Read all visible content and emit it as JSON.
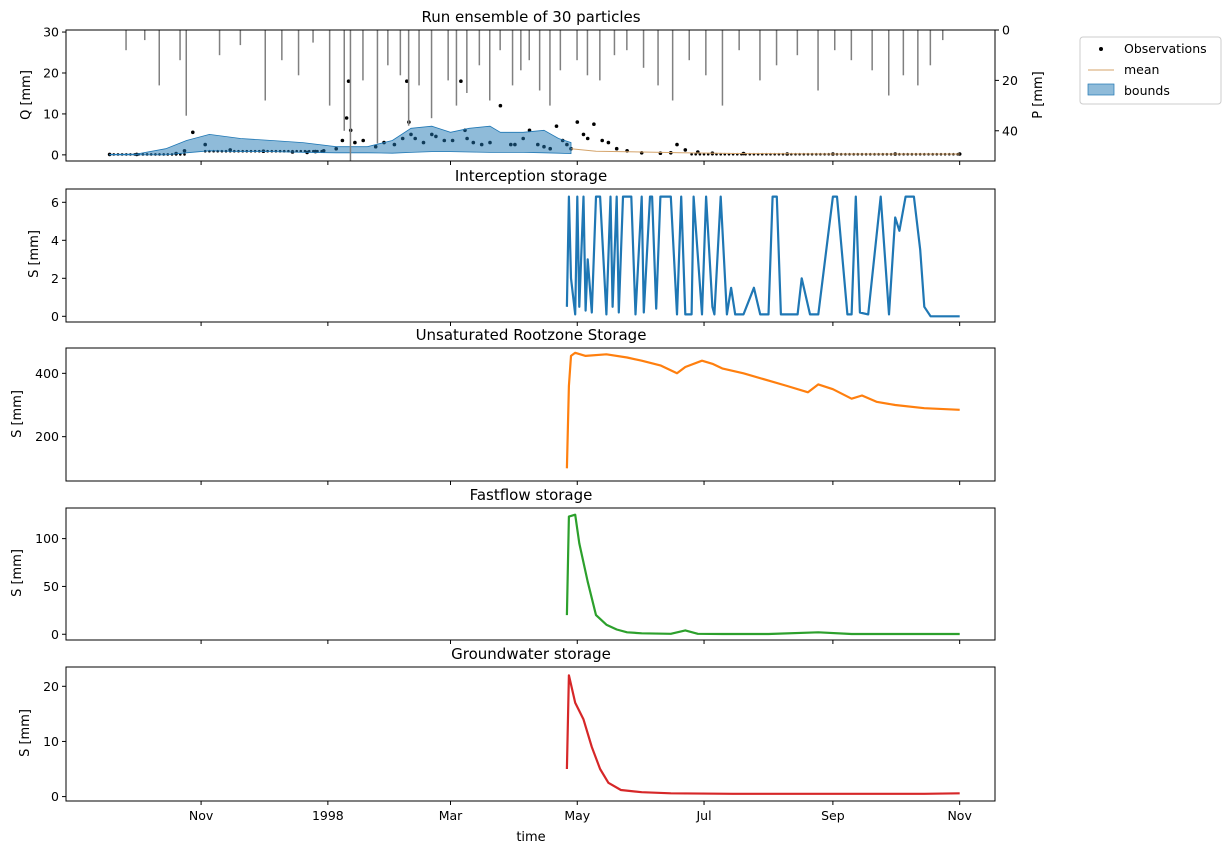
{
  "chart_data": [
    {
      "type": "line",
      "title": "Run ensemble of 30 particles",
      "xlabel": "",
      "ylabel": "Q [mm]",
      "ylabel_right": "P [mm]",
      "ylim": [
        -1.5,
        30.5
      ],
      "yticks": [
        "0",
        "10",
        "20",
        "30"
      ],
      "ylim_right_inverted": [
        52,
        0
      ],
      "yticks_right": [
        "0",
        "20",
        "40"
      ],
      "legend": {
        "placement": "outside-top-right",
        "entries": [
          "Observations",
          "mean",
          "bounds"
        ]
      },
      "series": [
        {
          "name": "Observations",
          "style": "points",
          "color": "#000000",
          "x": [
            "1997-09-18",
            "1997-10-01",
            "1997-10-20",
            "1997-10-24",
            "1997-10-28",
            "1997-11-03",
            "1997-11-15",
            "1997-12-01",
            "1997-12-15",
            "1997-12-22",
            "1997-12-26",
            "1997-12-30",
            "1998-01-05",
            "1998-01-08",
            "1998-01-10",
            "1998-01-11",
            "1998-01-12",
            "1998-01-14",
            "1998-01-18",
            "1998-01-24",
            "1998-01-28",
            "1998-02-02",
            "1998-02-06",
            "1998-02-08",
            "1998-02-09",
            "1998-02-10",
            "1998-02-12",
            "1998-02-16",
            "1998-02-20",
            "1998-02-22",
            "1998-02-26",
            "1998-03-02",
            "1998-03-06",
            "1998-03-08",
            "1998-03-09",
            "1998-03-12",
            "1998-03-16",
            "1998-03-20",
            "1998-03-25",
            "1998-03-30",
            "1998-04-01",
            "1998-04-05",
            "1998-04-08",
            "1998-04-12",
            "1998-04-15",
            "1998-04-18",
            "1998-04-21",
            "1998-04-24",
            "1998-04-26",
            "1998-04-28",
            "1998-05-01",
            "1998-05-04",
            "1998-05-06",
            "1998-05-09",
            "1998-05-13",
            "1998-05-16",
            "1998-05-20",
            "1998-05-25",
            "1998-06-01",
            "1998-06-10",
            "1998-06-15",
            "1998-06-18",
            "1998-06-22",
            "1998-06-28",
            "1998-07-05",
            "1998-07-20",
            "1998-08-10",
            "1998-09-01",
            "1998-10-01",
            "1998-11-01"
          ],
          "values": [
            0.1,
            0.1,
            0.3,
            1.0,
            5.5,
            2.5,
            1.2,
            0.9,
            0.7,
            0.6,
            0.8,
            1.0,
            1.5,
            3.5,
            9.0,
            18.0,
            6.0,
            3.0,
            3.5,
            2.0,
            3.0,
            2.5,
            4.0,
            18.0,
            8.0,
            5.0,
            4.0,
            3.0,
            5.0,
            4.5,
            3.5,
            3.5,
            18.0,
            6.0,
            4.0,
            3.0,
            2.5,
            3.0,
            12.0,
            2.5,
            2.5,
            4.0,
            6.0,
            2.5,
            2.0,
            1.5,
            7.0,
            3.5,
            2.5,
            1.5,
            8.0,
            5.0,
            4.0,
            7.5,
            3.5,
            3.0,
            1.5,
            1.0,
            0.5,
            0.4,
            0.5,
            2.5,
            1.2,
            0.7,
            0.4,
            0.3,
            0.2,
            0.2,
            0.2,
            0.2
          ]
        },
        {
          "name": "mean",
          "style": "line",
          "color": "#d4a36a",
          "x": [
            "1998-04-28",
            "1998-05-10",
            "1998-06-01",
            "1998-06-20",
            "1998-07-20",
            "1998-09-01",
            "1998-11-01"
          ],
          "values": [
            1.5,
            0.9,
            0.7,
            0.5,
            0.3,
            0.2,
            0.2
          ]
        },
        {
          "name": "bounds",
          "style": "band",
          "color": "#1f77b4",
          "x": [
            "1997-09-18",
            "1997-10-01",
            "1997-10-15",
            "1997-10-25",
            "1997-11-05",
            "1997-11-20",
            "1997-12-05",
            "1997-12-20",
            "1998-01-05",
            "1998-01-20",
            "1998-02-01",
            "1998-02-10",
            "1998-02-20",
            "1998-03-01",
            "1998-03-10",
            "1998-03-20",
            "1998-03-25",
            "1998-04-05",
            "1998-04-15",
            "1998-04-22",
            "1998-04-28"
          ],
          "upper": [
            0.1,
            0.2,
            1.5,
            3.5,
            5.0,
            4.0,
            3.5,
            3.0,
            2.0,
            2.0,
            3.5,
            6.5,
            7.0,
            5.5,
            6.5,
            7.0,
            5.5,
            5.5,
            6.0,
            4.0,
            3.0
          ],
          "lower": [
            0.0,
            0.0,
            0.0,
            0.5,
            1.0,
            0.8,
            0.8,
            0.6,
            0.5,
            0.5,
            0.4,
            0.6,
            0.8,
            0.8,
            0.7,
            0.6,
            0.6,
            0.6,
            0.5,
            0.4,
            0.3
          ]
        },
        {
          "name": "",
          "style": "bars-from-top",
          "color": "#808080",
          "axis": "right",
          "x": [
            "1997-09-26",
            "1997-10-05",
            "1997-10-12",
            "1997-10-22",
            "1997-10-25",
            "1997-11-10",
            "1997-11-20",
            "1997-12-02",
            "1997-12-10",
            "1997-12-18",
            "1997-12-25",
            "1998-01-02",
            "1998-01-09",
            "1998-01-12",
            "1998-01-18",
            "1998-01-25",
            "1998-01-30",
            "1998-02-05",
            "1998-02-09",
            "1998-02-14",
            "1998-02-20",
            "1998-02-28",
            "1998-03-04",
            "1998-03-09",
            "1998-03-15",
            "1998-03-20",
            "1998-03-25",
            "1998-03-31",
            "1998-04-04",
            "1998-04-08",
            "1998-04-13",
            "1998-04-18",
            "1998-04-23",
            "1998-05-01",
            "1998-05-06",
            "1998-05-12",
            "1998-05-19",
            "1998-05-25",
            "1998-06-02",
            "1998-06-09",
            "1998-06-16",
            "1998-06-24",
            "1998-07-02",
            "1998-07-10",
            "1998-07-18",
            "1998-07-28",
            "1998-08-05",
            "1998-08-15",
            "1998-08-25",
            "1998-09-02",
            "1998-09-10",
            "1998-09-20",
            "1998-09-28",
            "1998-10-05",
            "1998-10-12",
            "1998-10-18",
            "1998-10-24"
          ],
          "values": [
            8,
            4,
            22,
            12,
            34,
            10,
            6,
            28,
            12,
            18,
            5,
            30,
            40,
            52,
            20,
            45,
            14,
            18,
            38,
            22,
            35,
            20,
            30,
            25,
            14,
            28,
            8,
            22,
            16,
            12,
            24,
            30,
            16,
            12,
            18,
            20,
            10,
            8,
            15,
            22,
            28,
            12,
            18,
            30,
            8,
            20,
            14,
            10,
            24,
            8,
            12,
            16,
            26,
            18,
            22,
            14,
            4
          ]
        }
      ]
    },
    {
      "type": "line",
      "title": "Interception storage",
      "xlabel": "",
      "ylabel": "S [mm]",
      "ylim": [
        -0.3,
        6.7
      ],
      "yticks": [
        "0",
        "2",
        "4",
        "6"
      ],
      "series": [
        {
          "color": "#1f77b4",
          "x": [
            "1998-04-26",
            "1998-04-27",
            "1998-04-28",
            "1998-04-30",
            "1998-05-01",
            "1998-05-02",
            "1998-05-04",
            "1998-05-05",
            "1998-05-06",
            "1998-05-08",
            "1998-05-10",
            "1998-05-12",
            "1998-05-15",
            "1998-05-17",
            "1998-05-18",
            "1998-05-20",
            "1998-05-21",
            "1998-05-23",
            "1998-05-27",
            "1998-05-29",
            "1998-06-01",
            "1998-06-02",
            "1998-06-05",
            "1998-06-06",
            "1998-06-08",
            "1998-06-10",
            "1998-06-11",
            "1998-06-15",
            "1998-06-18",
            "1998-06-20",
            "1998-06-22",
            "1998-06-25",
            "1998-06-26",
            "1998-06-30",
            "1998-07-02",
            "1998-07-05",
            "1998-07-06",
            "1998-07-09",
            "1998-07-12",
            "1998-07-14",
            "1998-07-16",
            "1998-07-20",
            "1998-07-25",
            "1998-07-28",
            "1998-08-01",
            "1998-08-03",
            "1998-08-05",
            "1998-08-07",
            "1998-08-15",
            "1998-08-17",
            "1998-08-21",
            "1998-08-25",
            "1998-09-01",
            "1998-09-03",
            "1998-09-08",
            "1998-09-10",
            "1998-09-12",
            "1998-09-14",
            "1998-09-18",
            "1998-09-24",
            "1998-09-28",
            "1998-10-01",
            "1998-10-03",
            "1998-10-06",
            "1998-10-10",
            "1998-10-13",
            "1998-10-15",
            "1998-10-18",
            "1998-11-01"
          ],
          "values": [
            0.5,
            6.3,
            2.0,
            0.1,
            6.3,
            0.5,
            6.3,
            0.3,
            3.0,
            0.2,
            6.3,
            6.3,
            0.1,
            6.3,
            0.5,
            6.3,
            0.2,
            6.3,
            6.3,
            0.1,
            6.3,
            0.2,
            6.3,
            6.3,
            0.4,
            6.3,
            6.3,
            6.3,
            0.1,
            6.3,
            0.1,
            0.1,
            6.3,
            0.1,
            6.3,
            0.5,
            0.1,
            6.3,
            0.1,
            1.5,
            0.1,
            0.1,
            1.5,
            0.1,
            0.1,
            6.3,
            6.3,
            0.1,
            0.1,
            2.0,
            0.1,
            0.1,
            6.3,
            6.3,
            0.1,
            0.1,
            6.3,
            0.2,
            0.1,
            6.3,
            0.1,
            5.2,
            4.5,
            6.3,
            6.3,
            3.5,
            0.5,
            0.0,
            0.0
          ]
        }
      ]
    },
    {
      "type": "line",
      "title": "Unsaturated Rootzone Storage",
      "xlabel": "",
      "ylabel": "S [mm]",
      "ylim": [
        60,
        480
      ],
      "yticks": [
        "200",
        "400"
      ],
      "series": [
        {
          "color": "#ff7f0e",
          "x": [
            "1998-04-26",
            "1998-04-27",
            "1998-04-28",
            "1998-04-30",
            "1998-05-05",
            "1998-05-15",
            "1998-05-25",
            "1998-06-01",
            "1998-06-10",
            "1998-06-18",
            "1998-06-22",
            "1998-06-30",
            "1998-07-05",
            "1998-07-10",
            "1998-07-20",
            "1998-08-10",
            "1998-08-20",
            "1998-08-25",
            "1998-09-01",
            "1998-09-10",
            "1998-09-15",
            "1998-09-22",
            "1998-10-01",
            "1998-10-15",
            "1998-11-01"
          ],
          "values": [
            100,
            360,
            455,
            465,
            455,
            460,
            450,
            440,
            425,
            400,
            420,
            440,
            430,
            415,
            400,
            360,
            340,
            365,
            350,
            320,
            330,
            310,
            300,
            290,
            285
          ]
        }
      ]
    },
    {
      "type": "line",
      "title": "Fastflow storage",
      "xlabel": "",
      "ylabel": "S [mm]",
      "ylim": [
        -6,
        132
      ],
      "yticks": [
        "0",
        "50",
        "100"
      ],
      "series": [
        {
          "color": "#2ca02c",
          "x": [
            "1998-04-26",
            "1998-04-27",
            "1998-04-30",
            "1998-05-02",
            "1998-05-06",
            "1998-05-10",
            "1998-05-15",
            "1998-05-20",
            "1998-05-25",
            "1998-06-01",
            "1998-06-15",
            "1998-06-22",
            "1998-06-28",
            "1998-07-10",
            "1998-08-01",
            "1998-08-25",
            "1998-09-10",
            "1998-10-15",
            "1998-11-01"
          ],
          "values": [
            20,
            123,
            125,
            95,
            55,
            20,
            10,
            5,
            2,
            1,
            0.5,
            4,
            0.5,
            0.3,
            0.3,
            2,
            0.3,
            0.3,
            0.3
          ]
        }
      ]
    },
    {
      "type": "line",
      "title": "Groundwater storage",
      "xlabel": "time",
      "ylabel": "S [mm]",
      "ylim": [
        -0.8,
        23.5
      ],
      "yticks": [
        "0",
        "10",
        "20"
      ],
      "xticks": [
        "Nov",
        "1998",
        "Mar",
        "May",
        "Jul",
        "Sep",
        "Nov"
      ],
      "series": [
        {
          "color": "#d62728",
          "x": [
            "1998-04-26",
            "1998-04-27",
            "1998-04-30",
            "1998-05-04",
            "1998-05-08",
            "1998-05-12",
            "1998-05-16",
            "1998-05-22",
            "1998-06-01",
            "1998-06-15",
            "1998-07-15",
            "1998-08-15",
            "1998-09-15",
            "1998-10-15",
            "1998-11-01"
          ],
          "values": [
            5,
            22,
            17,
            14,
            9,
            5,
            2.5,
            1.2,
            0.8,
            0.6,
            0.5,
            0.5,
            0.5,
            0.5,
            0.6
          ]
        }
      ]
    }
  ]
}
